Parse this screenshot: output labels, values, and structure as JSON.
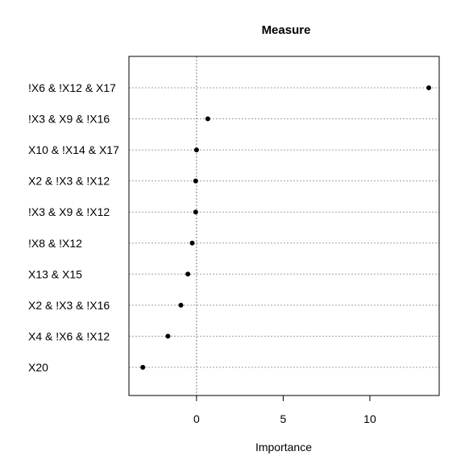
{
  "chart_data": {
    "type": "scatter",
    "style": "dotchart",
    "title": "Measure",
    "xlabel": "Importance",
    "ylabel": "",
    "xlim": [
      -3.9,
      14.0
    ],
    "xticks": [
      0,
      5,
      10
    ],
    "reference_line_x": 0,
    "grid": "dotted horizontal lines at each category",
    "legend": "none",
    "categories": [
      "!X6 & !X12 & X17",
      "!X3 & X9 & !X16",
      "X10 & !X14 & X17",
      "X2 & !X3 & !X12",
      "!X3 & X9 & !X12",
      "!X8 & !X12",
      "X13 & X15",
      "X2 & !X3 & !X16",
      "X4 & !X6 & !X12",
      "X20"
    ],
    "values": [
      13.4,
      0.65,
      0.0,
      -0.05,
      -0.05,
      -0.25,
      -0.5,
      -0.9,
      -1.65,
      -3.1
    ]
  }
}
